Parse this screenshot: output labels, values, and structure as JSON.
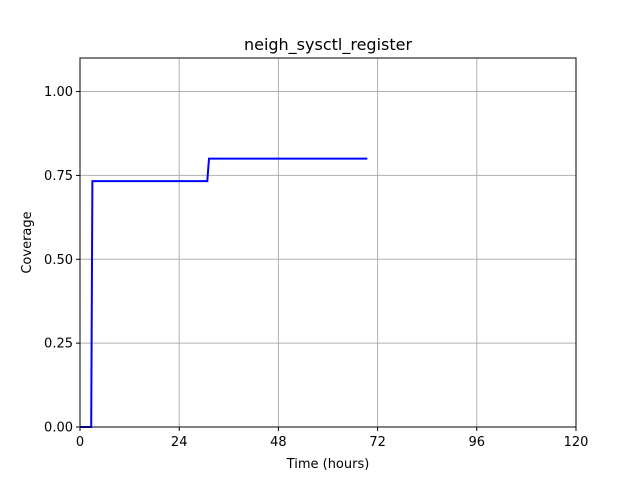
{
  "chart_data": {
    "type": "line",
    "title": "neigh_sysctl_register",
    "xlabel": "Time (hours)",
    "ylabel": "Coverage",
    "xlim": [
      0,
      120
    ],
    "ylim": [
      0,
      1.1
    ],
    "xticks": [
      0,
      24,
      48,
      72,
      96,
      120
    ],
    "xtick_labels": [
      "0",
      "24",
      "48",
      "72",
      "96",
      "120"
    ],
    "yticks": [
      0.0,
      0.25,
      0.5,
      0.75,
      1.0
    ],
    "ytick_labels": [
      "0.00",
      "0.25",
      "0.50",
      "0.75",
      "1.00"
    ],
    "grid": true,
    "series": [
      {
        "color": "#0000ff",
        "x": [
          0,
          2.7,
          3.0,
          30.8,
          31.2,
          69.5
        ],
        "y": [
          0.0,
          0.0,
          0.733,
          0.733,
          0.8,
          0.8
        ]
      }
    ]
  }
}
